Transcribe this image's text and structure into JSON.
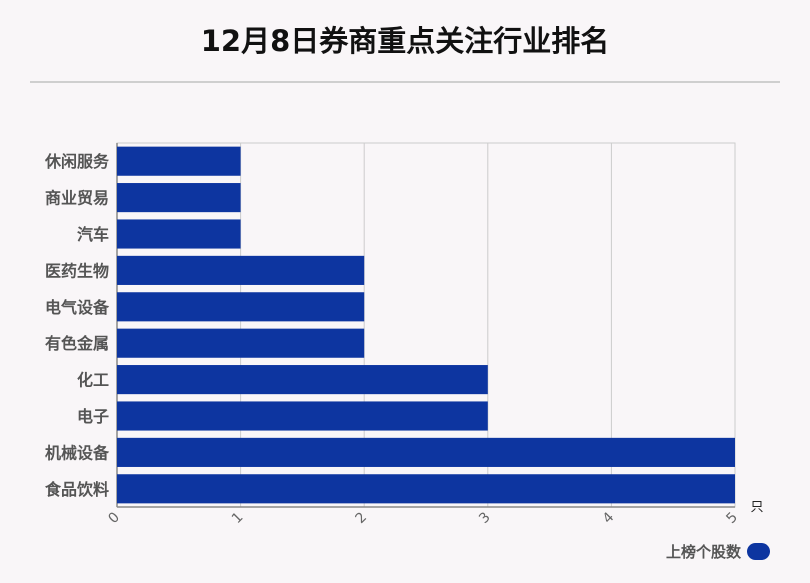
{
  "title": "12月8日券商重点关注行业排名",
  "colors": {
    "bar": "#0d35a0",
    "grid": "#cccccc",
    "axis": "#888888",
    "label": "#555555"
  },
  "legend": {
    "label": "上榜个股数"
  },
  "chart_data": {
    "type": "bar",
    "orientation": "horizontal",
    "categories": [
      "休闲服务",
      "商业贸易",
      "汽车",
      "医药生物",
      "电气设备",
      "有色金属",
      "化工",
      "电子",
      "机械设备",
      "食品饮料"
    ],
    "series": [
      {
        "name": "上榜个股数",
        "values": [
          1,
          1,
          1,
          2,
          2,
          2,
          3,
          3,
          5,
          5
        ]
      }
    ],
    "xlim": [
      0,
      5
    ],
    "xticks": [
      "0",
      "1",
      "2",
      "3",
      "4",
      "5"
    ],
    "xunit": "只",
    "grid": true,
    "legend_position": "bottom-right"
  }
}
